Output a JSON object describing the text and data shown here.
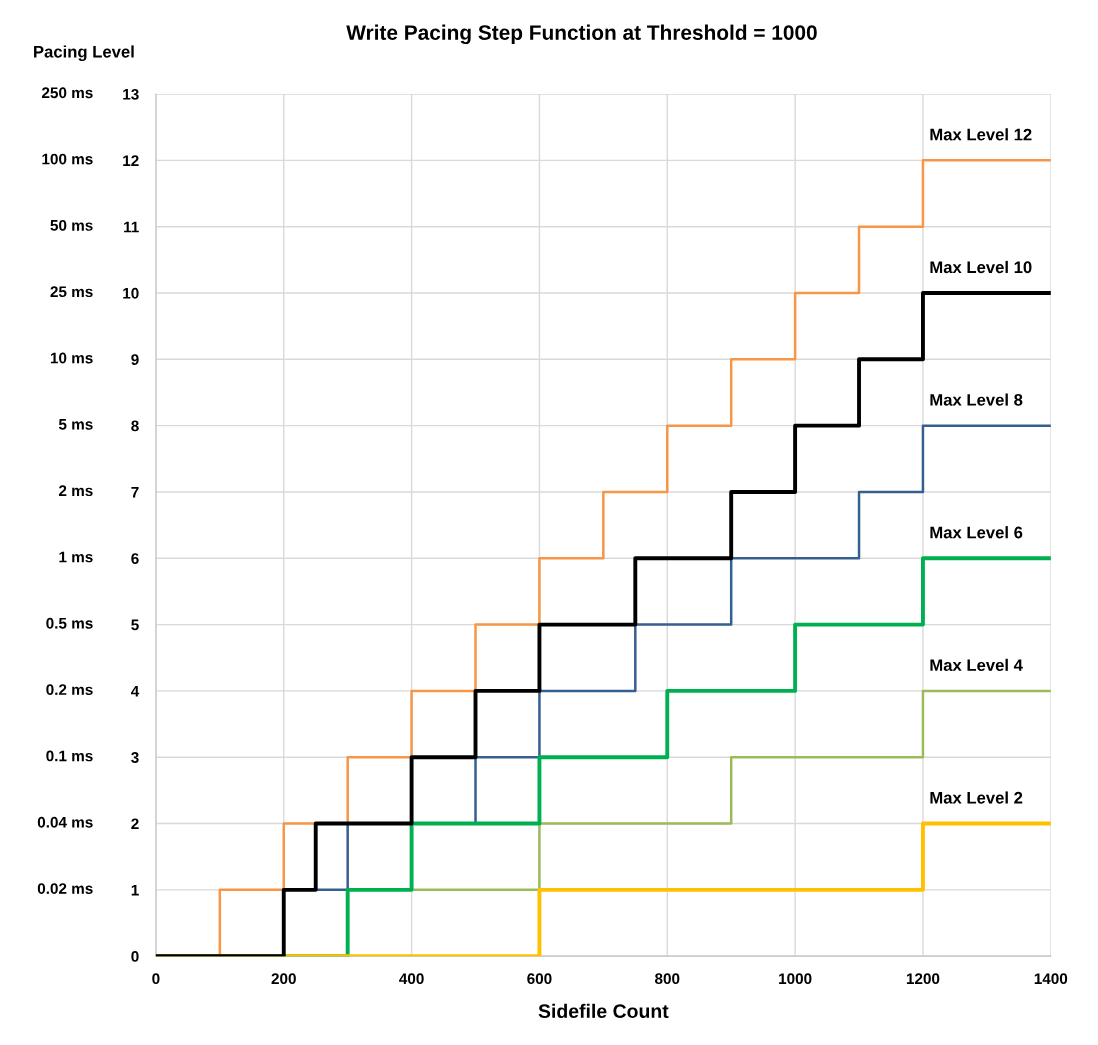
{
  "chart_data": {
    "type": "step",
    "title": "Write Pacing Step Function at Threshold = 1000",
    "xlabel": "Sidefile Count",
    "ylabel": "Pacing Level",
    "xlim": [
      0,
      1400
    ],
    "xticks": [
      0,
      200,
      400,
      600,
      800,
      1000,
      1200,
      1400
    ],
    "ylim": [
      0,
      13
    ],
    "yticks": [
      0,
      1,
      2,
      3,
      4,
      5,
      6,
      7,
      8,
      9,
      10,
      11,
      12,
      13
    ],
    "annotations": [
      "0.02 ms",
      "0.04 ms",
      "0.1 ms",
      "0.2 ms",
      "0.5 ms",
      "1 ms",
      "2 ms",
      "5 ms",
      "10 ms",
      "25 ms",
      "50 ms",
      "100 ms",
      "250 ms"
    ],
    "grid": true,
    "legend": false,
    "marker": "none",
    "series": [
      {
        "name": "Max Level 12",
        "color": "#f79646",
        "x": [
          0,
          100,
          200,
          300,
          400,
          500,
          600,
          700,
          800,
          900,
          1000,
          1100,
          1200,
          1400
        ],
        "values": [
          0,
          1,
          2,
          3,
          4,
          5,
          6,
          7,
          8,
          9,
          10,
          11,
          12,
          12
        ]
      },
      {
        "name": "Max Level 8",
        "color": "#365f91",
        "x": [
          0,
          200,
          300,
          500,
          600,
          750,
          900,
          1100,
          1200,
          1400
        ],
        "values": [
          0,
          1,
          2,
          3,
          4,
          5,
          6,
          7,
          8,
          8
        ]
      },
      {
        "name": "Max Level 4",
        "color": "#9bbb59",
        "x": [
          0,
          300,
          600,
          900,
          1200,
          1400
        ],
        "values": [
          0,
          1,
          2,
          3,
          4,
          4
        ]
      },
      {
        "name": "Max Level 6",
        "color": "#00b050",
        "x": [
          0,
          300,
          400,
          600,
          800,
          1000,
          1200,
          1400
        ],
        "values": [
          0,
          1,
          2,
          3,
          4,
          5,
          6,
          6
        ]
      },
      {
        "name": "Max Level 2",
        "color": "#ffc000",
        "x": [
          0,
          600,
          1200,
          1400
        ],
        "values": [
          0,
          1,
          2,
          2
        ]
      },
      {
        "name": "Max Level 10",
        "color": "#000000",
        "x": [
          0,
          200,
          250,
          400,
          500,
          600,
          750,
          900,
          1000,
          1100,
          1200,
          1400
        ],
        "values": [
          0,
          1,
          2,
          3,
          4,
          5,
          6,
          7,
          8,
          9,
          10,
          10
        ]
      }
    ]
  }
}
